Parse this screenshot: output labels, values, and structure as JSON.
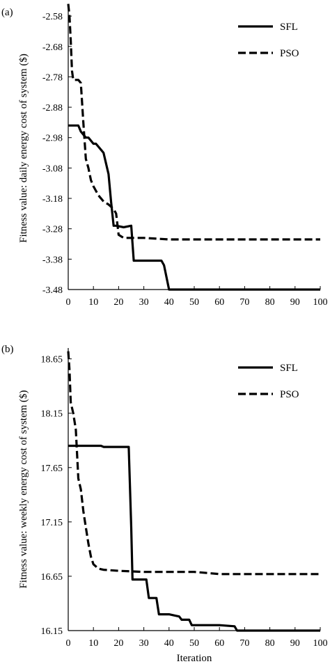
{
  "chart_data": [
    {
      "type": "line",
      "panel_label": "(a)",
      "title": "",
      "xlabel": "",
      "ylabel": "Fitness value: daily energy cost of system ($)",
      "xlim": [
        0,
        100
      ],
      "ylim": [
        -3.48,
        -2.55
      ],
      "x_ticks": [
        0,
        10,
        20,
        30,
        40,
        50,
        60,
        70,
        80,
        90,
        100
      ],
      "y_ticks": [
        -3.48,
        -3.38,
        -3.28,
        -3.18,
        -3.08,
        -2.98,
        -2.88,
        -2.78,
        -2.68,
        -2.58
      ],
      "y_tick_labels": [
        "-3.48",
        "-3.38",
        "-3.28",
        "-3.18",
        "-3.08",
        "-2.98",
        "-2.88",
        "-2.78",
        "-2.68",
        "-2.58"
      ],
      "grid": false,
      "legend_position": "top-right",
      "series": [
        {
          "name": "SFL",
          "style": "solid",
          "x": [
            0,
            4,
            5,
            7,
            8,
            10,
            11,
            13,
            14,
            16,
            17,
            18,
            19,
            22,
            25,
            26,
            37,
            38,
            39,
            40,
            100
          ],
          "y": [
            -2.94,
            -2.94,
            -2.96,
            -2.98,
            -2.98,
            -3.0,
            -3.0,
            -3.02,
            -3.03,
            -3.1,
            -3.19,
            -3.27,
            -3.27,
            -3.275,
            -3.27,
            -3.385,
            -3.385,
            -3.4,
            -3.44,
            -3.48,
            -3.48
          ]
        },
        {
          "name": "PSO",
          "style": "dashed",
          "x": [
            0,
            0.5,
            1,
            1.5,
            2,
            4,
            5,
            6,
            7,
            8,
            9,
            10,
            12,
            14,
            16,
            18,
            19,
            20,
            22,
            30,
            40,
            50,
            60,
            70,
            80,
            90,
            100
          ],
          "y": [
            -2.54,
            -2.58,
            -2.66,
            -2.76,
            -2.79,
            -2.79,
            -2.8,
            -2.93,
            -3.05,
            -3.08,
            -3.12,
            -3.14,
            -3.17,
            -3.19,
            -3.2,
            -3.215,
            -3.23,
            -3.3,
            -3.31,
            -3.31,
            -3.315,
            -3.315,
            -3.315,
            -3.315,
            -3.315,
            -3.315,
            -3.315
          ]
        }
      ]
    },
    {
      "type": "line",
      "panel_label": "(b)",
      "title": "",
      "xlabel": "Iteration",
      "ylabel": "Fitness value: weekly energy cost of system ($)",
      "xlim": [
        0,
        100
      ],
      "ylim": [
        16.15,
        18.75
      ],
      "x_ticks": [
        0,
        10,
        20,
        30,
        40,
        50,
        60,
        70,
        80,
        90,
        100
      ],
      "y_ticks": [
        16.15,
        16.65,
        17.15,
        17.65,
        18.15,
        18.65
      ],
      "y_tick_labels": [
        "16.15",
        "16.65",
        "17.15",
        "17.65",
        "18.15",
        "18.65"
      ],
      "grid": false,
      "legend_position": "top-right",
      "series": [
        {
          "name": "SFL",
          "style": "solid",
          "x": [
            0,
            13,
            14,
            24,
            25,
            25.5,
            31,
            32,
            35,
            36,
            40,
            44,
            45,
            48,
            49,
            60,
            66,
            67,
            100
          ],
          "y": [
            17.85,
            17.85,
            17.84,
            17.84,
            17.1,
            16.62,
            16.62,
            16.45,
            16.45,
            16.3,
            16.3,
            16.28,
            16.25,
            16.25,
            16.2,
            16.2,
            16.19,
            16.15,
            16.15
          ]
        },
        {
          "name": "PSO",
          "style": "dashed",
          "x": [
            0,
            0.5,
            1,
            2,
            3,
            4,
            5,
            6,
            7,
            8,
            9,
            10,
            12,
            14,
            20,
            30,
            40,
            50,
            55,
            60,
            70,
            80,
            90,
            100
          ],
          "y": [
            18.72,
            18.55,
            18.25,
            18.15,
            18.0,
            17.55,
            17.45,
            17.25,
            17.1,
            16.95,
            16.83,
            16.76,
            16.72,
            16.71,
            16.7,
            16.69,
            16.69,
            16.69,
            16.68,
            16.67,
            16.67,
            16.67,
            16.67,
            16.67
          ]
        }
      ]
    }
  ]
}
